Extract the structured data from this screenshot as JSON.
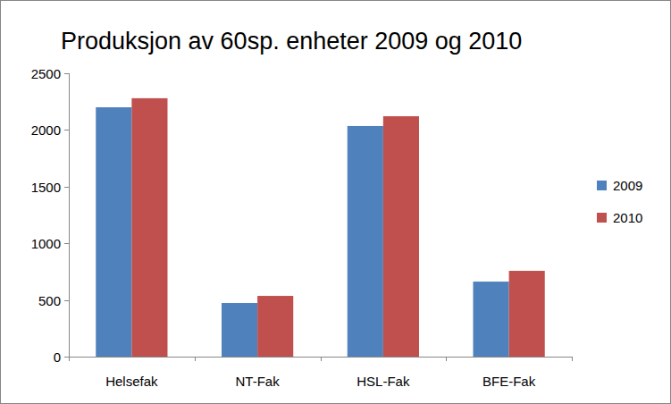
{
  "chart_data": {
    "type": "bar",
    "title": "Produksjon av 60sp. enheter 2009 og 2010",
    "categories": [
      "Helsefak",
      "NT-Fak",
      "HSL-Fak",
      "BFE-Fak"
    ],
    "series": [
      {
        "name": "2009",
        "color": "#4f81bd",
        "values": [
          2200,
          473,
          2035,
          662
        ]
      },
      {
        "name": "2010",
        "color": "#c0504d",
        "values": [
          2280,
          536,
          2121,
          757
        ]
      }
    ],
    "ylim": [
      0,
      2500
    ],
    "yticks": [
      0,
      500,
      1000,
      1500,
      2000,
      2500
    ],
    "grid": false,
    "legend": "right"
  }
}
